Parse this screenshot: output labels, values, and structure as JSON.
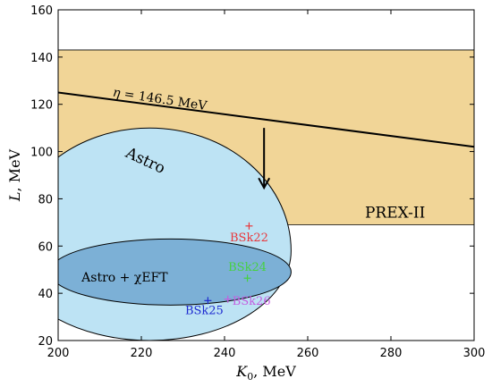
{
  "chart_data": {
    "type": "scatter",
    "title": "",
    "xlabel": {
      "symbol": "K",
      "sub": "0",
      "unit": ", MeV"
    },
    "ylabel": {
      "symbol": "L",
      "unit": ", MeV"
    },
    "xlim": [
      200,
      300
    ],
    "ylim": [
      20,
      160
    ],
    "xticks": [
      200,
      220,
      240,
      260,
      280,
      300
    ],
    "yticks": [
      20,
      40,
      60,
      80,
      100,
      120,
      140,
      160
    ],
    "grid": false,
    "legend": "none",
    "colors": {
      "prex_band": "#f1d597",
      "astro_region": "#bde3f4",
      "astro_chieft_region": "#7cb0d6",
      "outline": "#000000"
    },
    "regions": {
      "prex": {
        "label": "PREX-II",
        "L_min": 69,
        "L_max": 143
      },
      "astro": {
        "label": "Astro",
        "center": [
          222,
          58
        ],
        "semi_axis_K": 34,
        "semi_axis_L_top": 52,
        "semi_axis_L_bottom": 38
      },
      "astro_chieft": {
        "label": "Astro + χEFT",
        "center": [
          227,
          49
        ],
        "semi_axis_K": 29,
        "semi_axis_L": 14
      }
    },
    "eta_line": {
      "label_symbol": "η",
      "label_value": "= 146.5 MeV",
      "start": [
        200,
        125
      ],
      "end": [
        300,
        102
      ],
      "arrow_x": 249.5,
      "arrow_from": 110,
      "arrow_to": 85
    },
    "points": [
      {
        "name": "BSk22",
        "K": 245.9,
        "L": 68.5,
        "color": "#e8383c"
      },
      {
        "name": "BSk24",
        "K": 245.5,
        "L": 46.4,
        "color": "#46d141"
      },
      {
        "name": "BSk25",
        "K": 236.0,
        "L": 36.9,
        "color": "#1e2bd0"
      },
      {
        "name": "BSk26",
        "K": 240.8,
        "L": 37.5,
        "color": "#c35ee0"
      }
    ]
  }
}
